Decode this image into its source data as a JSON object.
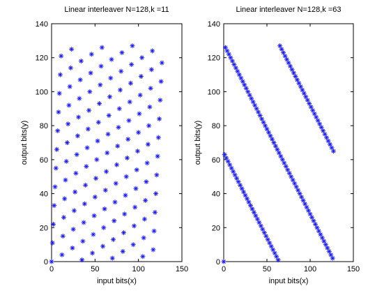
{
  "chart_data": [
    {
      "type": "scatter",
      "title": "Linear interleaver N=128,k =11",
      "xlabel": "input bits(x)",
      "ylabel": "output bits(y)",
      "xlim": [
        0,
        150
      ],
      "ylim": [
        0,
        140
      ],
      "xticks": [
        0,
        50,
        100,
        150
      ],
      "yticks": [
        0,
        20,
        40,
        60,
        80,
        100,
        120,
        140
      ],
      "grid": false,
      "marker": "asterisk",
      "color": "#1a1aff",
      "N": 128,
      "k": 11,
      "rule": "y = (k * x) mod N, x = 0..N-1"
    },
    {
      "type": "scatter",
      "title": "Linear interleaver N=128,k =63",
      "xlabel": "input bits(x)",
      "ylabel": "output bits(y)",
      "xlim": [
        0,
        150
      ],
      "ylim": [
        0,
        140
      ],
      "xticks": [
        0,
        50,
        100,
        150
      ],
      "yticks": [
        0,
        20,
        40,
        60,
        80,
        100,
        120,
        140
      ],
      "grid": false,
      "marker": "asterisk",
      "color": "#1a1aff",
      "N": 128,
      "k": 63,
      "rule": "y = (k * x) mod N, x = 0..N-1"
    }
  ]
}
